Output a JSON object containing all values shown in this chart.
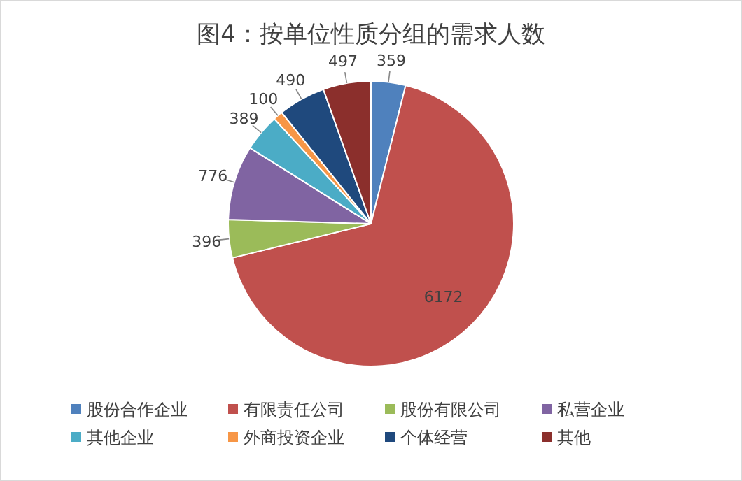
{
  "chart_data": {
    "type": "pie",
    "title": "图4：按单位性质分组的需求人数",
    "categories": [
      "股份合作企业",
      "有限责任公司",
      "股份有限公司",
      "私营企业",
      "其他企业",
      "外商投资企业",
      "个体经营",
      "其他"
    ],
    "values": [
      359,
      6172,
      396,
      776,
      389,
      100,
      490,
      497
    ],
    "colors": [
      "#4f81bd",
      "#c0504d",
      "#9bbb59",
      "#8064a2",
      "#4bacc6",
      "#f79646",
      "#1f497d",
      "#8b2f2c"
    ],
    "data_labels": true,
    "legend": "bottom"
  }
}
